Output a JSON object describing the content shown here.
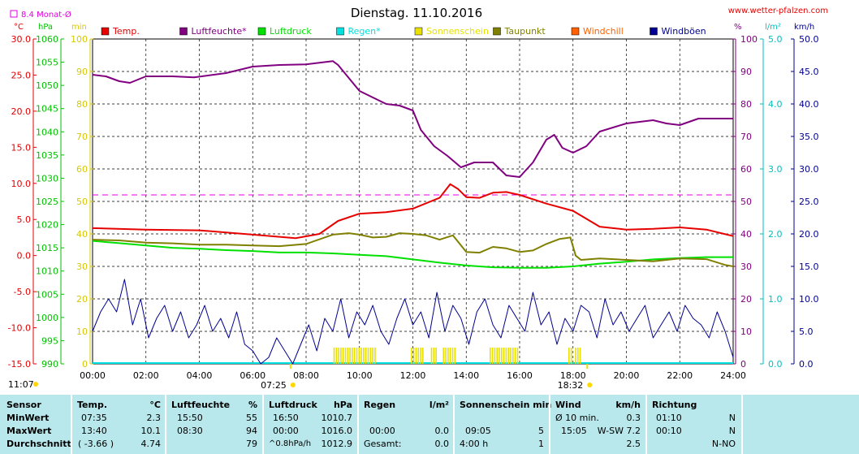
{
  "title": "Dienstag. 11.10.2016",
  "source": "www.wetter-pfalzen.com",
  "monthly_avg_label": "8.4 Monat-Ø",
  "axis_units": {
    "temp": "°C",
    "pressure": "hPa",
    "min": "min",
    "percent": "%",
    "rain": "l/m²",
    "wind": "km/h"
  },
  "legend": [
    {
      "label": "Temp.",
      "color": "#e60000"
    },
    {
      "label": "Luftfeuchte*",
      "color": "#800080"
    },
    {
      "label": "Luftdruck",
      "color": "#00e000"
    },
    {
      "label": "Regen*",
      "color": "#00e0e0"
    },
    {
      "label": "Sonnenschein",
      "color": "#e8e000"
    },
    {
      "label": "Taupunkt",
      "color": "#808000"
    },
    {
      "label": "Windchill",
      "color": "#ff6000"
    },
    {
      "label": "Windböen",
      "color": "#000090"
    }
  ],
  "sunrise": "07:25",
  "sunset": "18:32",
  "day_length": "11:07",
  "chart_data": {
    "type": "line",
    "x_ticks": [
      "00:00",
      "02:00",
      "04:00",
      "06:00",
      "08:00",
      "10:00",
      "12:00",
      "14:00",
      "16:00",
      "18:00",
      "20:00",
      "22:00",
      "24:00"
    ],
    "axes": {
      "temp_c": {
        "ylim": [
          -15,
          30
        ],
        "ticks": [
          "30.0",
          "25.0",
          "20.0",
          "15.0",
          "10.0",
          "5.0",
          "0.0",
          "-5.0",
          "-10.0",
          "-15.0"
        ]
      },
      "pressure_hpa": {
        "ylim": [
          990,
          1060
        ],
        "ticks": [
          "1060",
          "1055",
          "1050",
          "1045",
          "1040",
          "1035",
          "1030",
          "1025",
          "1020",
          "1015",
          "1010",
          "1005",
          "1000",
          "995",
          "990"
        ]
      },
      "sunshine_min": {
        "ylim": [
          0,
          100
        ],
        "ticks": [
          "100",
          "90",
          "80",
          "70",
          "60",
          "50",
          "40",
          "30",
          "20",
          "10",
          "0"
        ]
      },
      "humidity_pct": {
        "ylim": [
          0,
          100
        ],
        "ticks": [
          "100",
          "90",
          "80",
          "70",
          "60",
          "50",
          "40",
          "30",
          "20",
          "10",
          "0"
        ]
      },
      "rain_lm2": {
        "ylim": [
          0,
          5
        ],
        "ticks": [
          "5.0",
          "4.0",
          "3.0",
          "2.0",
          "1.0",
          "0.0"
        ]
      },
      "wind_kmh": {
        "ylim": [
          0,
          50
        ],
        "ticks": [
          "50.0",
          "45.0",
          "40.0",
          "35.0",
          "30.0",
          "25.0",
          "20.0",
          "15.0",
          "10.0",
          "5.0",
          "0.0"
        ]
      }
    },
    "monthly_avg_temp": 8.4,
    "series": [
      {
        "name": "Temp.",
        "color": "#e60000",
        "axis": "temp_c",
        "x": [
          0,
          2,
          4,
          6,
          7.6,
          8.5,
          9.2,
          10,
          11,
          12,
          13,
          13.4,
          13.7,
          14,
          14.5,
          15,
          15.5,
          16,
          17,
          18,
          19,
          20,
          21,
          22,
          23,
          24
        ],
        "y": [
          3.8,
          3.6,
          3.5,
          2.9,
          2.4,
          3.0,
          4.8,
          5.8,
          6.0,
          6.5,
          8.0,
          9.9,
          9.2,
          8.1,
          8.0,
          8.7,
          8.8,
          8.4,
          7.2,
          6.2,
          4.0,
          3.6,
          3.7,
          3.9,
          3.6,
          2.7
        ]
      },
      {
        "name": "Luftfeuchte*",
        "color": "#800080",
        "axis": "humidity_pct",
        "x": [
          0,
          0.5,
          1,
          1.4,
          2,
          3,
          3.8,
          5,
          6,
          7,
          8,
          9,
          9.2,
          9.6,
          10,
          11,
          11.5,
          12,
          12.3,
          12.8,
          13.3,
          13.8,
          14.3,
          15,
          15.5,
          16,
          16.5,
          17,
          17.3,
          17.6,
          18,
          18.5,
          19,
          20,
          21,
          21.5,
          22,
          22.7,
          23,
          24
        ],
        "y": [
          89,
          88.5,
          87,
          86.5,
          88.5,
          88.5,
          88.2,
          89.5,
          91.5,
          92,
          92.2,
          93.2,
          92,
          88,
          84,
          80,
          79.5,
          78,
          72,
          67,
          64,
          60.5,
          62,
          62,
          58,
          57.5,
          62,
          69,
          70.5,
          66.5,
          65,
          67,
          71.5,
          74,
          75,
          74,
          73.5,
          75.5,
          75.5,
          75.5
        ]
      },
      {
        "name": "Luftdruck",
        "color": "#00e000",
        "axis": "pressure_hpa",
        "x": [
          0,
          1,
          2,
          3,
          4,
          5,
          6,
          7,
          8,
          9,
          10,
          11,
          12,
          13,
          14,
          15,
          16,
          17,
          18,
          19,
          20,
          21,
          22,
          23,
          24
        ],
        "y": [
          1016.5,
          1016,
          1015.5,
          1015,
          1014.8,
          1014.5,
          1014.3,
          1014,
          1014,
          1013.8,
          1013.5,
          1013.2,
          1012.5,
          1011.8,
          1011.2,
          1010.8,
          1010.7,
          1010.7,
          1011,
          1011.6,
          1012,
          1012.5,
          1012.8,
          1013,
          1013
        ]
      },
      {
        "name": "Taupunkt",
        "color": "#808000",
        "axis": "temp_c",
        "x": [
          0,
          1,
          2,
          3,
          4,
          5,
          6,
          7,
          8,
          9,
          9.6,
          10,
          10.5,
          11,
          11.5,
          12,
          12.5,
          13,
          13.5,
          14,
          14.5,
          15,
          15.5,
          16,
          16.5,
          17,
          17.5,
          17.9,
          18.1,
          18.3,
          19,
          20,
          21,
          22,
          23,
          23.7,
          24
        ],
        "y": [
          2.2,
          2.1,
          1.8,
          1.7,
          1.5,
          1.5,
          1.4,
          1.3,
          1.6,
          2.9,
          3.1,
          2.9,
          2.5,
          2.6,
          3.1,
          3.0,
          2.8,
          2.2,
          2.8,
          0.5,
          0.4,
          1.2,
          1.0,
          0.5,
          0.7,
          1.6,
          2.3,
          2.5,
          0.0,
          -0.6,
          -0.4,
          -0.6,
          -0.8,
          -0.4,
          -0.5,
          -1.3,
          -1.5
        ]
      },
      {
        "name": "Windböen",
        "color": "#000090",
        "axis": "wind_kmh",
        "x": [
          0,
          0.3,
          0.6,
          0.9,
          1.2,
          1.5,
          1.8,
          2.1,
          2.4,
          2.7,
          3,
          3.3,
          3.6,
          3.9,
          4.2,
          4.5,
          4.8,
          5.1,
          5.4,
          5.7,
          6,
          6.3,
          6.6,
          6.9,
          7.2,
          7.5,
          7.8,
          8.1,
          8.4,
          8.7,
          9,
          9.3,
          9.6,
          9.9,
          10.2,
          10.5,
          10.8,
          11.1,
          11.4,
          11.7,
          12,
          12.3,
          12.6,
          12.9,
          13.2,
          13.5,
          13.8,
          14.1,
          14.4,
          14.7,
          15,
          15.3,
          15.6,
          15.9,
          16.2,
          16.5,
          16.8,
          17.1,
          17.4,
          17.7,
          18,
          18.3,
          18.6,
          18.9,
          19.2,
          19.5,
          19.8,
          20.1,
          20.4,
          20.7,
          21,
          21.3,
          21.6,
          21.9,
          22.2,
          22.5,
          22.8,
          23.1,
          23.4,
          23.7,
          24
        ],
        "y": [
          5,
          8,
          10,
          8,
          13,
          6,
          10,
          4,
          7,
          9,
          5,
          8,
          4,
          6,
          9,
          5,
          7,
          4,
          8,
          3,
          2,
          0,
          1,
          4,
          2,
          0,
          3,
          6,
          2,
          7,
          5,
          10,
          4,
          8,
          6,
          9,
          5,
          3,
          7,
          10,
          6,
          8,
          4,
          11,
          5,
          9,
          7,
          3,
          8,
          10,
          6,
          4,
          9,
          7,
          5,
          11,
          6,
          8,
          3,
          7,
          5,
          9,
          8,
          4,
          10,
          6,
          8,
          5,
          7,
          9,
          4,
          6,
          8,
          5,
          9,
          7,
          6,
          4,
          8,
          5,
          1
        ]
      }
    ],
    "sunshine_blocks": [
      [
        9.05,
        10.6
      ],
      [
        11.95,
        12.4
      ],
      [
        12.7,
        12.95
      ],
      [
        13.15,
        13.6
      ],
      [
        14.9,
        16.0
      ],
      [
        17.85,
        17.95
      ],
      [
        18.1,
        18.3
      ]
    ]
  },
  "stats": {
    "headers": [
      "Sensor",
      "Temp.",
      "°C",
      "Luftfeuchte",
      "%",
      "Luftdruck",
      "hPa",
      "Regen",
      "l/m²",
      "Sonnenschein min",
      "Wind",
      "km/h",
      "Richtung"
    ],
    "row_labels": [
      "MinWert",
      "MaxWert",
      "Durchschnitt"
    ],
    "temp": [
      [
        "07:35",
        "2.3"
      ],
      [
        "13:40",
        "10.1"
      ],
      [
        "( -3.66 )",
        "4.74"
      ]
    ],
    "humidity": [
      [
        "15:50",
        "55"
      ],
      [
        "08:30",
        "94"
      ],
      [
        "",
        "79"
      ]
    ],
    "pressure": [
      [
        "16:50",
        "1010.7"
      ],
      [
        "00:00",
        "1016.0"
      ],
      [
        "^0.8hPa/h",
        "1012.9"
      ]
    ],
    "rain": [
      [
        "",
        ""
      ],
      [
        "00:00",
        "0.0"
      ],
      [
        "Gesamt:",
        "0.0"
      ]
    ],
    "sunshine": [
      [
        "",
        ""
      ],
      [
        "09:05",
        "5"
      ],
      [
        "4:00 h",
        "1"
      ]
    ],
    "wind": [
      [
        "Ø 10 min.",
        "0.3"
      ],
      [
        "15:05",
        "W-SW 7.2"
      ],
      [
        "",
        "2.5"
      ]
    ],
    "direction": [
      [
        "01:10",
        "N"
      ],
      [
        "00:10",
        "N"
      ],
      [
        "",
        "N-NO"
      ]
    ]
  }
}
